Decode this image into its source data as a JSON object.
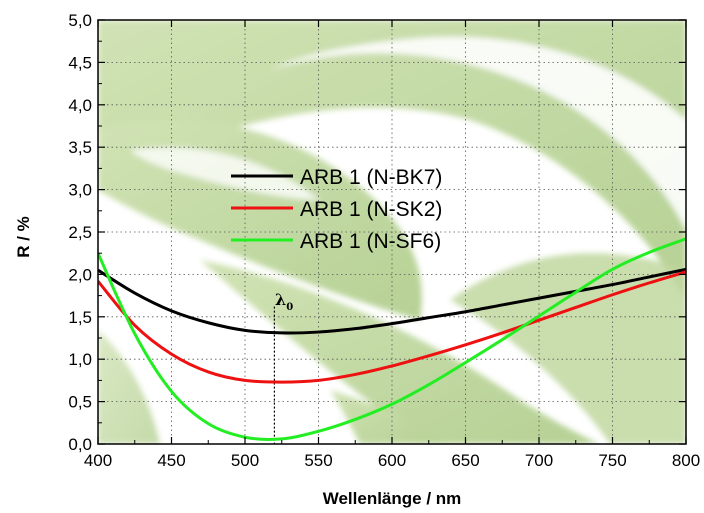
{
  "chart_data": {
    "type": "line",
    "xlabel": "Wellenlänge / nm",
    "ylabel": "R / %",
    "xlim": [
      400,
      800
    ],
    "ylim": [
      0,
      5
    ],
    "x_ticks": [
      "400",
      "450",
      "500",
      "550",
      "600",
      "650",
      "700",
      "750",
      "800"
    ],
    "y_ticks": [
      "0,0",
      "0,5",
      "1,0",
      "1,5",
      "2,0",
      "2,5",
      "3,0",
      "3,5",
      "4,0",
      "4,5",
      "5,0"
    ],
    "grid": true,
    "legend_position": "center",
    "annotation": {
      "text": "λ",
      "subscript": "0",
      "x": 520
    },
    "x": [
      400,
      425,
      450,
      475,
      500,
      525,
      550,
      575,
      600,
      625,
      650,
      675,
      700,
      725,
      750,
      775,
      800
    ],
    "series": [
      {
        "name": "ARB 1 (N-BK7)",
        "color": "#000000",
        "values": [
          2.05,
          1.78,
          1.57,
          1.43,
          1.34,
          1.31,
          1.32,
          1.36,
          1.42,
          1.49,
          1.56,
          1.64,
          1.72,
          1.8,
          1.88,
          1.97,
          2.06
        ]
      },
      {
        "name": "ARB 1 (N-SK2)",
        "color": "#ee1111",
        "values": [
          1.92,
          1.4,
          1.06,
          0.85,
          0.75,
          0.73,
          0.75,
          0.82,
          0.92,
          1.04,
          1.17,
          1.31,
          1.46,
          1.61,
          1.76,
          1.9,
          2.03
        ]
      },
      {
        "name": "ARB 1 (N-SF6)",
        "color": "#22ee22",
        "values": [
          2.25,
          1.3,
          0.62,
          0.24,
          0.08,
          0.06,
          0.15,
          0.29,
          0.47,
          0.7,
          0.96,
          1.23,
          1.51,
          1.79,
          2.06,
          2.26,
          2.42
        ]
      }
    ]
  }
}
